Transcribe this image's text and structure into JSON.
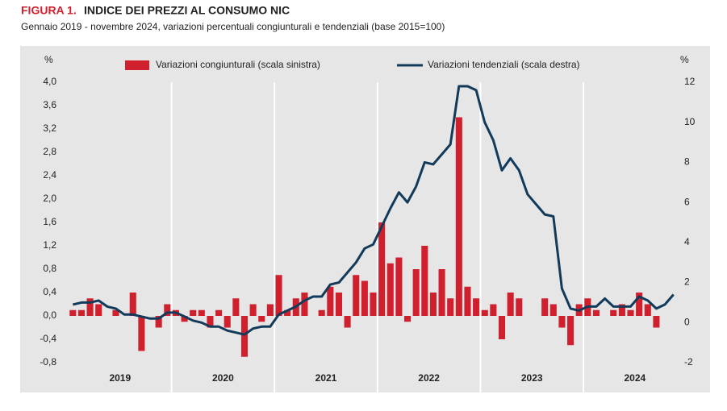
{
  "chart_data": {
    "type": "bar-line",
    "figure_label": "FIGURA 1.",
    "title": "INDICE DEI PREZZI AL CONSUMO NIC",
    "subtitle": "Gennaio 2019 - novembre 2024, variazioni percentuali congiunturali e tendenziali (base 2015=100)",
    "y_unit": "%",
    "y2_unit": "%",
    "categories": [
      null,
      null,
      null,
      null,
      null,
      null,
      null,
      null,
      null,
      null,
      null,
      null,
      null,
      null,
      null,
      null,
      null,
      null,
      null,
      null,
      null,
      null,
      null,
      null,
      null,
      null,
      null,
      null,
      null,
      null,
      null,
      null,
      null,
      null,
      null,
      null,
      null,
      null,
      null,
      null,
      null,
      null,
      null,
      null,
      null,
      null,
      null,
      null,
      null,
      null,
      null,
      null,
      null,
      null,
      null,
      null,
      null,
      null,
      null,
      null,
      null,
      null,
      null,
      null,
      null,
      null,
      null,
      null,
      null,
      null,
      null
    ],
    "year_labels": [
      "2019",
      "2020",
      "2021",
      "2022",
      "2023",
      "2024"
    ],
    "series": [
      {
        "name": "Variazioni congiunturali (scala sinistra)",
        "color": "#d0202e",
        "kind": "bar",
        "values": [
          0.1,
          0.1,
          0.3,
          0.2,
          0.0,
          0.1,
          0.0,
          0.4,
          -0.6,
          0.0,
          -0.2,
          0.2,
          0.1,
          -0.1,
          0.1,
          0.1,
          -0.2,
          0.1,
          -0.2,
          0.3,
          -0.7,
          0.2,
          -0.1,
          0.2,
          0.7,
          0.1,
          0.3,
          0.4,
          0.0,
          0.1,
          0.5,
          0.4,
          -0.2,
          0.7,
          0.6,
          0.4,
          1.6,
          0.9,
          1.0,
          -0.1,
          0.8,
          1.2,
          0.4,
          0.8,
          0.3,
          3.4,
          0.5,
          0.3,
          0.1,
          0.2,
          -0.4,
          0.4,
          0.3,
          0.0,
          0.0,
          0.3,
          0.2,
          -0.2,
          -0.5,
          0.2,
          0.3,
          0.1,
          0.0,
          0.1,
          0.2,
          0.1,
          0.4,
          0.2,
          -0.2,
          0.0,
          0.0
        ]
      },
      {
        "name": "Variazioni tendenziali (scala destra)",
        "color": "#123a5a",
        "kind": "line",
        "axis": "y2",
        "values": [
          0.9,
          1.0,
          1.0,
          1.1,
          0.8,
          0.7,
          0.4,
          0.4,
          0.3,
          0.2,
          0.2,
          0.5,
          0.5,
          0.3,
          0.1,
          0.0,
          -0.2,
          -0.2,
          -0.4,
          -0.5,
          -0.6,
          -0.3,
          -0.2,
          -0.2,
          0.4,
          0.6,
          0.8,
          1.1,
          1.3,
          1.3,
          1.9,
          2.0,
          2.5,
          3.0,
          3.7,
          3.9,
          4.8,
          5.7,
          6.5,
          6.0,
          6.8,
          8.0,
          7.9,
          8.4,
          8.9,
          11.8,
          11.8,
          11.6,
          10.0,
          9.1,
          7.6,
          8.2,
          7.6,
          6.4,
          5.9,
          5.4,
          5.3,
          1.7,
          0.7,
          0.6,
          0.8,
          0.8,
          1.2,
          0.8,
          0.8,
          0.8,
          1.3,
          1.1,
          0.7,
          0.9,
          1.4
        ]
      }
    ],
    "ylim": [
      -0.8,
      4.0
    ],
    "yticks": [
      {
        "value": -0.8,
        "label": "-0,8"
      },
      {
        "value": -0.4,
        "label": "-0,4"
      },
      {
        "value": 0,
        "label": "0,0"
      },
      {
        "value": 0.4,
        "label": "0,4"
      },
      {
        "value": 0.8,
        "label": "0,8"
      },
      {
        "value": 1.2,
        "label": "1,2"
      },
      {
        "value": 1.6,
        "label": "1,6"
      },
      {
        "value": 2.0,
        "label": "2,0"
      },
      {
        "value": 2.4,
        "label": "2,4"
      },
      {
        "value": 2.8,
        "label": "2,8"
      },
      {
        "value": 3.2,
        "label": "3,2"
      },
      {
        "value": 3.6,
        "label": "3,6"
      },
      {
        "value": 4.0,
        "label": "4,0"
      }
    ],
    "y2lim": [
      -2,
      12
    ],
    "y2ticks": [
      -2,
      0,
      2,
      4,
      6,
      8,
      10,
      12
    ]
  }
}
